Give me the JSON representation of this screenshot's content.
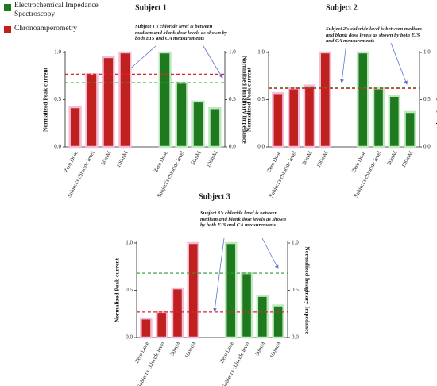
{
  "legend": {
    "position": "upper left"
  },
  "chart_data": [
    {
      "type": "bar",
      "title": "Subject 1",
      "y_label": "Normalized Peak current",
      "y2_label": "Normalized Imaginary Impedance",
      "annotation": "Subject 1's chloride level is between medium and blank dose levels as shown by both EIS and CA measurements",
      "series": [
        {
          "name": "Chronoamperometry",
          "color": "#c0201e",
          "axis": "y",
          "categories": [
            "Zero Dose",
            "Subject's chloride level",
            "50mM",
            "100mM"
          ],
          "values": [
            0.42,
            0.77,
            0.95,
            1.0
          ]
        },
        {
          "name": "Electrochemical Impedance Spectroscopy",
          "color": "#1f7a1f",
          "axis": "y2",
          "categories": [
            "Zero Dose",
            "Subject's chloride level",
            "50mM",
            "100mM"
          ],
          "values": [
            1.0,
            0.68,
            0.48,
            0.41
          ]
        }
      ],
      "reference_lines": [
        {
          "value": 0.77,
          "color": "#d9262a",
          "axis": "y"
        },
        {
          "value": 0.68,
          "color": "#2e9a2e",
          "axis": "y2"
        }
      ],
      "ylim": [
        0,
        1
      ],
      "yticks": [
        {
          "value": 0,
          "label": "0.0"
        },
        {
          "value": 0.5,
          "label": "0.5"
        },
        {
          "value": 1,
          "label": "1.0"
        }
      ],
      "y2lim": [
        0,
        1
      ],
      "y2ticks": [
        {
          "value": 0,
          "label": "0.0"
        },
        {
          "value": 0.5,
          "label": "0.5"
        },
        {
          "value": 1,
          "label": "1.0"
        }
      ]
    },
    {
      "type": "bar",
      "title": "Subject 2",
      "y_label": "Normalized Peak current",
      "y2_label": "Normalized Imaginary Impedance",
      "annotation": "Subject 2's chloride level is between medium and blank dose levels as shown by both EIS and CA measurements",
      "series": [
        {
          "name": "Chronoamperometry",
          "color": "#c0201e",
          "axis": "y",
          "categories": [
            "Zero Dose",
            "Subject's chloride level",
            "50mM",
            "100mM"
          ],
          "values": [
            0.57,
            0.62,
            0.65,
            1.0
          ]
        },
        {
          "name": "Electrochemical Impedance Spectroscopy",
          "color": "#1f7a1f",
          "axis": "y2",
          "categories": [
            "Zero Dose",
            "Subject's chloride level",
            "50mM",
            "100mM"
          ],
          "values": [
            1.0,
            0.62,
            0.54,
            0.37
          ]
        }
      ],
      "reference_lines": [
        {
          "value": 0.62,
          "color": "#d9262a",
          "axis": "y"
        },
        {
          "value": 0.63,
          "color": "#2e9a2e",
          "axis": "y2"
        }
      ],
      "ylim": [
        0,
        1
      ],
      "yticks": [
        {
          "value": 0,
          "label": "0.0"
        },
        {
          "value": 0.5,
          "label": "0.5"
        },
        {
          "value": 1,
          "label": "1.0"
        }
      ],
      "y2lim": [
        0,
        1
      ],
      "y2ticks": [
        {
          "value": 0,
          "label": "0.0"
        },
        {
          "value": 0.5,
          "label": "0.5"
        },
        {
          "value": 1,
          "label": "1.0"
        }
      ]
    },
    {
      "type": "bar",
      "title": "Subject 3",
      "y_label": "Normalized Peak current",
      "y2_label": "Normalized Imaginary Impedance",
      "annotation": "Subject 3's chloride level is between medium and blank dose levels as shown by both EIS and CA measurements",
      "series": [
        {
          "name": "Chronoamperometry",
          "color": "#c0201e",
          "axis": "y",
          "categories": [
            "Zero Dose",
            "Subject's chloride level",
            "50mM",
            "100mM"
          ],
          "values": [
            0.2,
            0.27,
            0.52,
            1.0
          ]
        },
        {
          "name": "Electrochemical Impedance Spectroscopy",
          "color": "#1f7a1f",
          "axis": "y2",
          "categories": [
            "Zero Dose",
            "Subject's chloride level",
            "50mM",
            "100mM"
          ],
          "values": [
            1.0,
            0.68,
            0.44,
            0.34
          ]
        }
      ],
      "reference_lines": [
        {
          "value": 0.27,
          "color": "#d9262a",
          "axis": "y"
        },
        {
          "value": 0.68,
          "color": "#2e9a2e",
          "axis": "y2"
        }
      ],
      "ylim": [
        0,
        1
      ],
      "yticks": [
        {
          "value": 0,
          "label": "0.0"
        },
        {
          "value": 0.5,
          "label": "0.5"
        },
        {
          "value": 1,
          "label": "1.0"
        }
      ],
      "y2lim": [
        0,
        1
      ],
      "y2ticks": [
        {
          "value": 0,
          "label": "0.0"
        },
        {
          "value": 0.5,
          "label": "0.5"
        },
        {
          "value": 1,
          "label": "1.0"
        }
      ]
    }
  ]
}
